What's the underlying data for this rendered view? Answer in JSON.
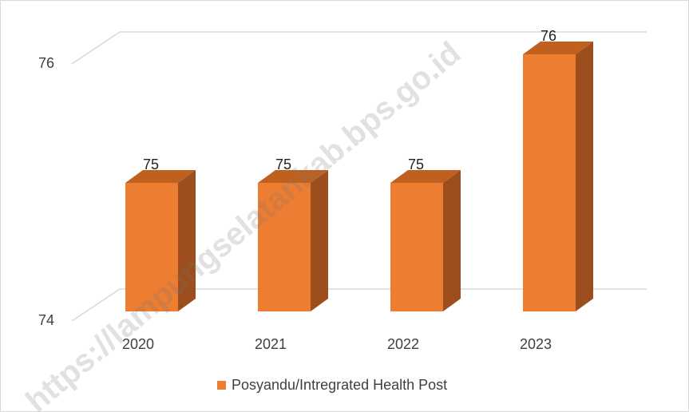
{
  "chart_data": {
    "type": "bar3d",
    "categories": [
      "2020",
      "2021",
      "2022",
      "2023"
    ],
    "series": [
      {
        "name": "Posyandu/Intregrated Health Post",
        "color": "#ed7d31",
        "values": [
          75,
          75,
          75,
          76
        ]
      }
    ],
    "ylim": [
      74,
      76
    ],
    "yticks": [
      74,
      76
    ],
    "grid": true,
    "legend": "bottom",
    "watermark": "https://lampungselatankab.bps.go.id"
  }
}
